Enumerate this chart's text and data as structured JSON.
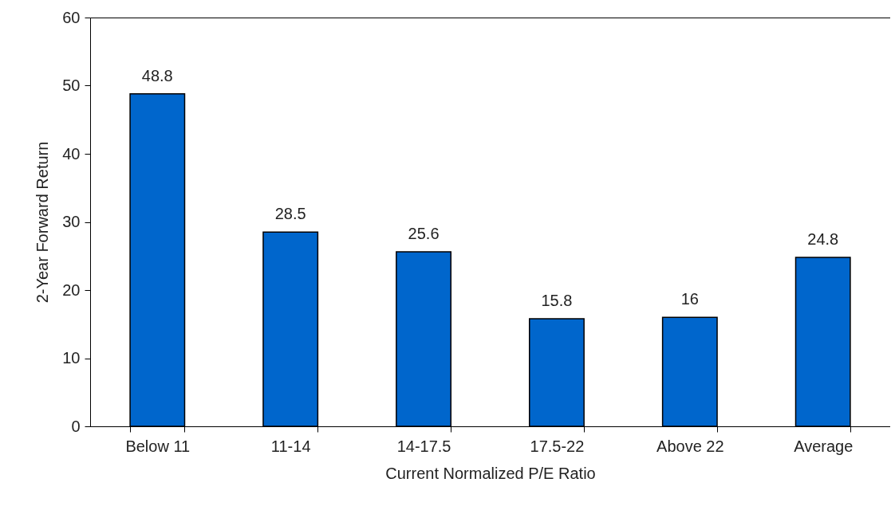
{
  "chart_data": {
    "type": "bar",
    "xlabel": "Current Normalized P/E Ratio",
    "ylabel": "2-Year Forward Return",
    "categories": [
      "Below 11",
      "11-14",
      "14-17.5",
      "17.5-22",
      "Above 22",
      "Average"
    ],
    "values": [
      48.8,
      28.5,
      25.6,
      15.8,
      16,
      24.8
    ],
    "color": "#0066cc",
    "ylim": [
      0,
      60
    ],
    "yticks": [
      0,
      10,
      20,
      30,
      40,
      50,
      60
    ],
    "grid": false,
    "data_labels": true
  }
}
